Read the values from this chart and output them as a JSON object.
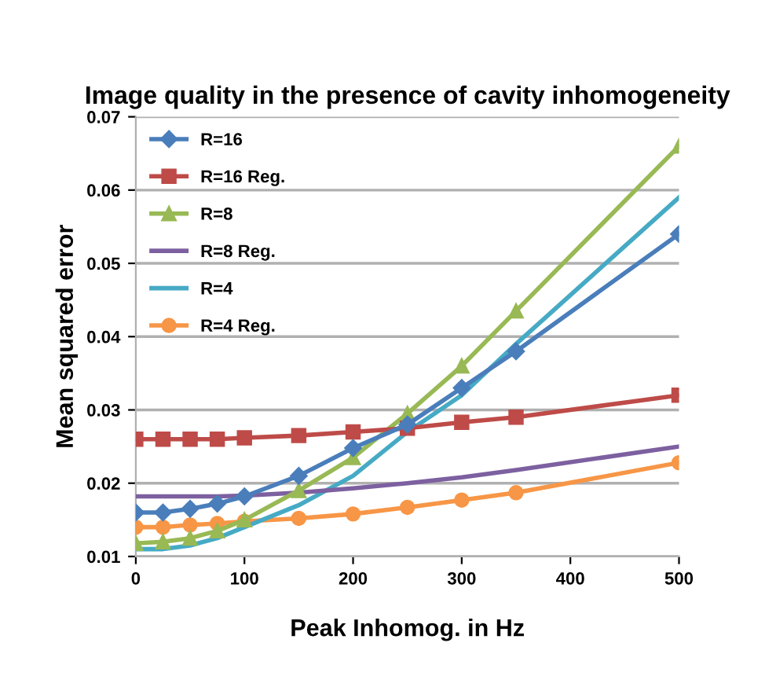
{
  "chart_data": {
    "type": "line",
    "title": "Image quality in the presence of cavity inhomogeneity",
    "xlabel": "Peak Inhomog. in Hz",
    "ylabel": "Mean squared error",
    "x": [
      0,
      25,
      50,
      75,
      100,
      150,
      200,
      250,
      300,
      350,
      500
    ],
    "xlim": [
      0,
      500
    ],
    "xticks": [
      0,
      100,
      200,
      300,
      400,
      500
    ],
    "ylim": [
      0.01,
      0.07
    ],
    "yticks": [
      {
        "value": 0.01,
        "label": "0.01"
      },
      {
        "value": 0.02,
        "label": "0.02"
      },
      {
        "value": 0.03,
        "label": "0.03"
      },
      {
        "value": 0.04,
        "label": "0.04"
      },
      {
        "value": 0.05,
        "label": "0.05"
      },
      {
        "value": 0.06,
        "label": "0.06"
      },
      {
        "value": 0.07,
        "label": "0.07"
      }
    ],
    "grid": "y",
    "legend": "top left",
    "series": [
      {
        "name": "R=16",
        "color": "#4a7ebb",
        "marker": "diamond",
        "values": [
          0.016,
          0.016,
          0.0165,
          0.0172,
          0.0182,
          0.021,
          0.0248,
          0.028,
          0.033,
          0.038,
          0.054
        ]
      },
      {
        "name": "R=16 Reg.",
        "color": "#be4b48",
        "marker": "square",
        "values": [
          0.026,
          0.026,
          0.026,
          0.026,
          0.0262,
          0.0265,
          0.027,
          0.0275,
          0.0283,
          0.029,
          0.032
        ]
      },
      {
        "name": "R=8",
        "color": "#98b954",
        "marker": "triangle",
        "values": [
          0.0118,
          0.012,
          0.0125,
          0.0135,
          0.015,
          0.019,
          0.0235,
          0.0295,
          0.036,
          0.0435,
          0.066
        ]
      },
      {
        "name": "R=8 Reg.",
        "color": "#7d60a0",
        "marker": "none",
        "values": [
          0.0182,
          0.0182,
          0.0182,
          0.0182,
          0.0183,
          0.0187,
          0.0193,
          0.02,
          0.0208,
          0.0218,
          0.025
        ]
      },
      {
        "name": "R=4",
        "color": "#46aac5",
        "marker": "none",
        "values": [
          0.011,
          0.011,
          0.0115,
          0.0125,
          0.014,
          0.017,
          0.021,
          0.027,
          0.032,
          0.039,
          0.059
        ]
      },
      {
        "name": "R=4 Reg.",
        "color": "#f79646",
        "marker": "circle",
        "values": [
          0.014,
          0.014,
          0.0143,
          0.0145,
          0.0148,
          0.0152,
          0.0158,
          0.0167,
          0.0177,
          0.0187,
          0.0228
        ]
      }
    ]
  }
}
